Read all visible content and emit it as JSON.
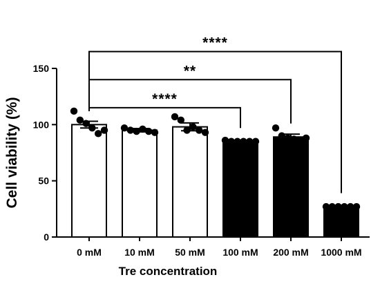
{
  "chart_data": {
    "type": "bar",
    "xlabel": "Tre concentration",
    "ylabel": "Cell viability (%)",
    "ylim": [
      0,
      150
    ],
    "yticks": [
      0,
      50,
      100,
      150
    ],
    "grid": false,
    "categories": [
      "0 mM",
      "10 mM",
      "50 mM",
      "100 mM",
      "200 mM",
      "1000 mM"
    ],
    "values": [
      100,
      95,
      98,
      85,
      89,
      27
    ],
    "errors": [
      3,
      1.5,
      3.5,
      0.5,
      2.5,
      0.5
    ],
    "fill_colors": [
      "#ffffff",
      "#ffffff",
      "#ffffff",
      "#000000",
      "#000000",
      "#000000"
    ],
    "points": [
      [
        112,
        104,
        101,
        97,
        92,
        95
      ],
      [
        97,
        95,
        94,
        96,
        94,
        93
      ],
      [
        107,
        104,
        95,
        98,
        95,
        93
      ],
      [
        86,
        85,
        85,
        85,
        85,
        85
      ],
      [
        97,
        90,
        88,
        87,
        86,
        88
      ],
      [
        27,
        27,
        27,
        27,
        27,
        27
      ]
    ],
    "significance": [
      {
        "from": 0,
        "to": 5,
        "level": 165,
        "label": "****"
      },
      {
        "from": 0,
        "to": 4,
        "level": 140,
        "label": "**"
      },
      {
        "from": 0,
        "to": 3,
        "level": 115,
        "label": "****"
      }
    ]
  }
}
